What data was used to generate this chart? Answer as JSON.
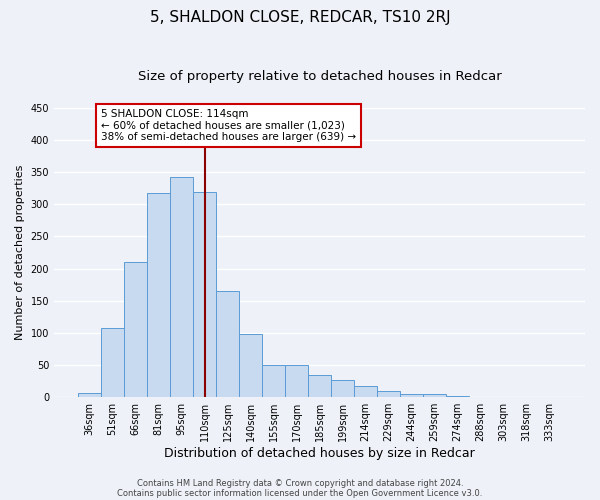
{
  "title": "5, SHALDON CLOSE, REDCAR, TS10 2RJ",
  "subtitle": "Size of property relative to detached houses in Redcar",
  "xlabel": "Distribution of detached houses by size in Redcar",
  "ylabel": "Number of detached properties",
  "categories": [
    "36sqm",
    "51sqm",
    "66sqm",
    "81sqm",
    "95sqm",
    "110sqm",
    "125sqm",
    "140sqm",
    "155sqm",
    "170sqm",
    "185sqm",
    "199sqm",
    "214sqm",
    "229sqm",
    "244sqm",
    "259sqm",
    "274sqm",
    "288sqm",
    "303sqm",
    "318sqm",
    "333sqm"
  ],
  "bar_heights": [
    7,
    107,
    210,
    317,
    342,
    319,
    165,
    99,
    50,
    50,
    35,
    27,
    18,
    9,
    5,
    5,
    2,
    0,
    0,
    0,
    0
  ],
  "bar_color": "#c8daf0",
  "bar_edge_color": "#5b9bd5",
  "vline_x": 5.0,
  "vline_color": "#8b0000",
  "annotation_title": "5 SHALDON CLOSE: 114sqm",
  "annotation_line1": "← 60% of detached houses are smaller (1,023)",
  "annotation_line2": "38% of semi-detached houses are larger (639) →",
  "annotation_box_color": "#ffffff",
  "annotation_box_edge": "#cc0000",
  "ylim": [
    0,
    450
  ],
  "yticks": [
    0,
    50,
    100,
    150,
    200,
    250,
    300,
    350,
    400,
    450
  ],
  "footer1": "Contains HM Land Registry data © Crown copyright and database right 2024.",
  "footer2": "Contains public sector information licensed under the Open Government Licence v3.0.",
  "bg_color": "#eef2f8",
  "grid_color": "#ffffff",
  "title_fontsize": 11,
  "subtitle_fontsize": 9.5,
  "tick_fontsize": 7,
  "ylabel_fontsize": 8,
  "xlabel_fontsize": 9
}
